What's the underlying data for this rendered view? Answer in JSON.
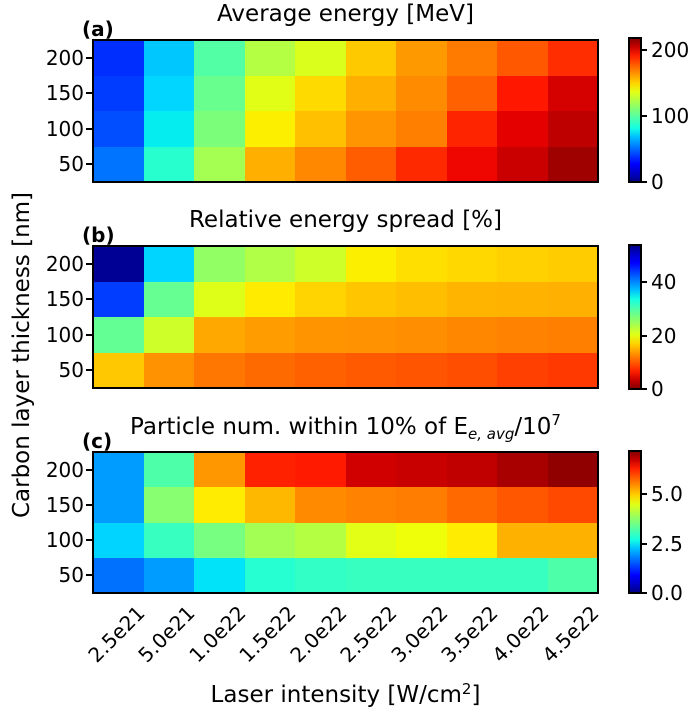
{
  "figure": {
    "background": "#ffffff",
    "text_color": "#000000",
    "y_axis_label": "Carbon layer thickness [nm]",
    "x_axis_label": {
      "pre": "Laser intensity [W/cm",
      "sup": "2",
      "post": "]"
    }
  },
  "x_ticks": [
    "2.5e21",
    "5.0e21",
    "1.0e22",
    "1.5e22",
    "2.0e22",
    "2.5e22",
    "3.0e22",
    "3.5e22",
    "4.0e22",
    "4.5e22"
  ],
  "y_ticks": [
    "200",
    "150",
    "100",
    "50"
  ],
  "chart_data": [
    {
      "type": "heatmap",
      "panel_label": "(a)",
      "title": "Average energy [MeV]",
      "colormap": "jet",
      "vmin": 0,
      "vmax": 218,
      "rows_nm": [
        200,
        150,
        100,
        50
      ],
      "columns": [
        "2.5e21",
        "5.0e21",
        "1.0e22",
        "1.5e22",
        "2.0e22",
        "2.5e22",
        "3.0e22",
        "3.5e22",
        "4.0e22",
        "4.5e22"
      ],
      "values": [
        [
          37,
          70,
          98,
          124,
          134,
          152,
          163,
          170,
          178,
          188
        ],
        [
          40,
          73,
          104,
          136,
          148,
          158,
          166,
          176,
          193,
          202
        ],
        [
          44,
          78,
          109,
          143,
          154,
          164,
          169,
          190,
          199,
          206
        ],
        [
          52,
          87,
          120,
          158,
          167,
          177,
          189,
          197,
          204,
          212
        ]
      ],
      "colorbar_ticks": [
        {
          "value": 0,
          "label": "0"
        },
        {
          "value": 100,
          "label": "100"
        },
        {
          "value": 200,
          "label": "200"
        }
      ]
    },
    {
      "type": "heatmap",
      "panel_label": "(b)",
      "title": "Relative energy spread [%]",
      "colormap": "jet_reversed",
      "vmin": 0,
      "vmax": 54,
      "rows_nm": [
        200,
        150,
        100,
        50
      ],
      "columns": [
        "2.5e21",
        "5.0e21",
        "1.0e22",
        "1.5e22",
        "2.0e22",
        "2.5e22",
        "3.0e22",
        "3.5e22",
        "4.0e22",
        "4.5e22"
      ],
      "values": [
        [
          53,
          36,
          25.5,
          23.5,
          21.5,
          18.5,
          17.6,
          17.2,
          16.8,
          16.5
        ],
        [
          44,
          28.5,
          20.5,
          18.3,
          17.0,
          16.2,
          15.7,
          15.2,
          15.1,
          14.9
        ],
        [
          28.6,
          21.6,
          14.5,
          13.8,
          13.3,
          13.2,
          13.0,
          12.6,
          12.3,
          12.2
        ],
        [
          16.3,
          13.2,
          11.6,
          10.9,
          10.4,
          10.0,
          9.7,
          9.3,
          8.5,
          8.1
        ]
      ],
      "colorbar_ticks": [
        {
          "value": 0,
          "label": "0"
        },
        {
          "value": 20,
          "label": "20"
        },
        {
          "value": 40,
          "label": "40"
        }
      ]
    },
    {
      "type": "heatmap",
      "panel_label": "(c)",
      "title": "Particle num. within 10% of E_(e, avg)/10^7",
      "title_parts": {
        "pre": "Particle num. within 10% of E",
        "sub": "e, avg",
        "mid": "/10",
        "sup": "7"
      },
      "colormap": "jet",
      "vmin": 0,
      "vmax": 7.2,
      "rows_nm": [
        200,
        150,
        100,
        50
      ],
      "columns": [
        "2.5e21",
        "5.0e21",
        "1.0e22",
        "1.5e22",
        "2.0e22",
        "2.5e22",
        "3.0e22",
        "3.5e22",
        "4.0e22",
        "4.5e22"
      ],
      "values": [
        [
          2.0,
          3.2,
          5.4,
          6.3,
          6.35,
          6.7,
          6.75,
          6.8,
          6.95,
          7.1
        ],
        [
          2.0,
          3.7,
          4.75,
          5.15,
          5.5,
          5.55,
          5.6,
          5.75,
          5.9,
          6.0
        ],
        [
          2.4,
          3.0,
          3.55,
          3.95,
          4.1,
          4.5,
          4.6,
          4.75,
          5.2,
          5.2
        ],
        [
          1.7,
          2.0,
          2.5,
          2.85,
          2.95,
          3.0,
          3.0,
          3.0,
          3.0,
          3.2
        ]
      ],
      "colorbar_ticks": [
        {
          "value": 0,
          "label": "0.0"
        },
        {
          "value": 2.5,
          "label": "2.5"
        },
        {
          "value": 5,
          "label": "5.0"
        }
      ]
    }
  ]
}
